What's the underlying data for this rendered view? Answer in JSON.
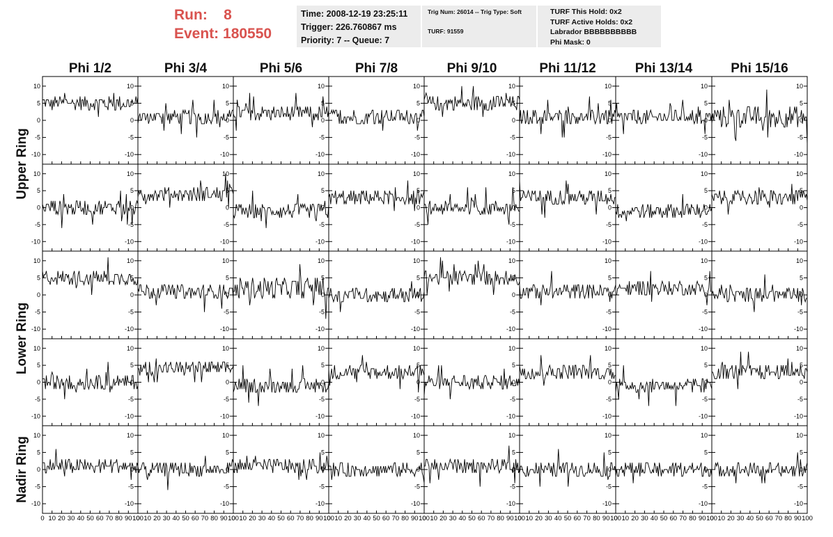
{
  "header": {
    "run_line": "Run:    8",
    "event_line": "Event: 180550"
  },
  "info_time": {
    "time": "Time: 2008-12-19 23:25:11",
    "trigger": "Trigger: 226.760867 ms",
    "priority": "Priority: 7 -- Queue: 7"
  },
  "info_trig": {
    "trig": "Trig Num: 26014 -- Trig Type: Soft",
    "turf": "TURF: 91559"
  },
  "info_turf": {
    "hold": "TURF This Hold: 0x2",
    "active": "TURF Active Holds: 0x2",
    "labrador": "Labrador BBBBBBBBBB",
    "phimask": "Phi Mask: 0"
  },
  "colors": {
    "title_red": "#d9534f",
    "trace": "#000000",
    "info_bg": "#ececec"
  },
  "chart_data": {
    "type": "line",
    "columns": [
      "Phi 1/2",
      "Phi 3/4",
      "Phi 5/6",
      "Phi 7/8",
      "Phi 9/10",
      "Phi 11/12",
      "Phi 13/14",
      "Phi 15/16"
    ],
    "rows": [
      "Upper Ring",
      "Upper Ring",
      "Lower Ring",
      "Lower Ring",
      "Nadir Ring"
    ],
    "row_labels": [
      "Upper Ring",
      "Lower Ring",
      "Nadir Ring"
    ],
    "x_range": [
      0,
      100
    ],
    "y_range": [
      -12,
      12
    ],
    "x_ticks": [
      "0",
      "10",
      "20",
      "30",
      "40",
      "50",
      "60",
      "70",
      "80",
      "90",
      "100"
    ],
    "y_ticks": [
      "10",
      "5",
      "0",
      "-5",
      "-10"
    ],
    "trace_baselines": [
      [
        5,
        1,
        2,
        1,
        5,
        1,
        1,
        1
      ],
      [
        0,
        4,
        -1,
        3,
        0,
        3,
        -1,
        3
      ],
      [
        5,
        1,
        2,
        0,
        5,
        1,
        2,
        0
      ],
      [
        0,
        4,
        -1,
        3,
        0,
        3,
        -1,
        3
      ],
      [
        1,
        0,
        1,
        0,
        1,
        0,
        0,
        0
      ]
    ],
    "trace_amplitude": [
      [
        2,
        2,
        2,
        2,
        2,
        2,
        2,
        3
      ],
      [
        2,
        2,
        2,
        2,
        2,
        2,
        2,
        2
      ],
      [
        2,
        2,
        3,
        2,
        2,
        2,
        2,
        2
      ],
      [
        2,
        2,
        2,
        2,
        2,
        2,
        2,
        2
      ],
      [
        2,
        2,
        2,
        2,
        2,
        2,
        2,
        2
      ]
    ],
    "samples_per_trace": 100
  }
}
